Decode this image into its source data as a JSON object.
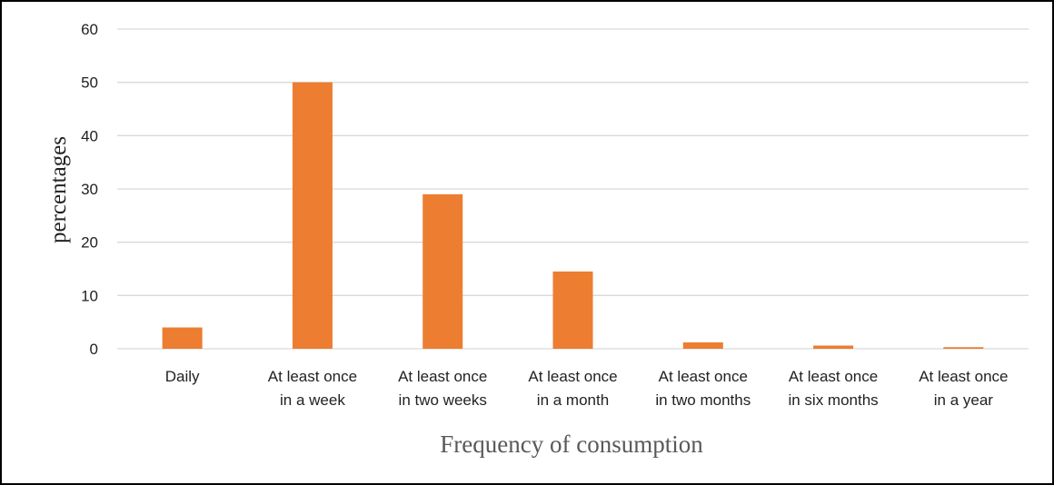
{
  "chart_data": {
    "type": "bar",
    "title": "",
    "xlabel": "Frequency of consumption",
    "ylabel": "percentages",
    "categories": [
      [
        "Daily"
      ],
      [
        "At least once",
        "in a week"
      ],
      [
        "At least once",
        "in two weeks"
      ],
      [
        "At least once",
        "in a month"
      ],
      [
        "At least once",
        "in two months"
      ],
      [
        "At least once",
        "in six months"
      ],
      [
        "At least once",
        "in a year"
      ]
    ],
    "values": [
      4,
      50,
      29,
      14.5,
      1.2,
      0.6,
      0.3
    ],
    "ylim": [
      0,
      60
    ],
    "yticks": [
      0,
      10,
      20,
      30,
      40,
      50,
      60
    ],
    "grid": true,
    "legend": "none",
    "bar_color": "#ED7D31",
    "grid_color": "#D9D9D9"
  }
}
